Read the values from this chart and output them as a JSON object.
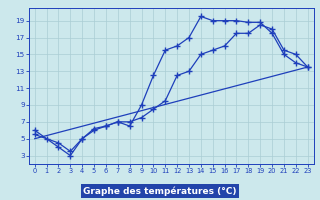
{
  "line1_x": [
    0,
    1,
    2,
    3,
    4,
    5,
    6,
    7,
    8,
    9,
    10,
    11,
    12,
    13,
    14,
    15,
    16,
    17,
    18,
    19,
    20,
    21,
    22,
    23
  ],
  "line1_y": [
    6.0,
    5.0,
    4.0,
    3.0,
    5.0,
    6.0,
    6.5,
    7.0,
    6.5,
    9.0,
    12.5,
    15.5,
    16.0,
    17.0,
    19.5,
    19.0,
    19.0,
    19.0,
    18.8,
    18.8,
    17.5,
    15.0,
    14.0,
    13.5
  ],
  "line2_x": [
    0,
    2,
    3,
    4,
    5,
    6,
    7,
    8,
    9,
    10,
    11,
    12,
    13,
    14,
    15,
    16,
    17,
    18,
    19,
    20,
    21,
    22,
    23
  ],
  "line2_y": [
    5.5,
    4.5,
    3.5,
    5.0,
    6.2,
    6.5,
    7.0,
    7.0,
    7.5,
    8.5,
    9.5,
    12.5,
    13.0,
    15.0,
    15.5,
    16.0,
    17.5,
    17.5,
    18.5,
    18.0,
    15.5,
    15.0,
    13.5
  ],
  "line3_x": [
    0,
    23
  ],
  "line3_y": [
    5.0,
    13.5
  ],
  "line_color": "#1e3fbb",
  "bg_color": "#cce8ec",
  "grid_color": "#aacdd4",
  "xlabel": "Graphe des températures (°C)",
  "xlabel_color": "#ffffff",
  "xlabel_bg": "#2244aa",
  "xlim": [
    -0.5,
    23.5
  ],
  "ylim": [
    2.0,
    20.5
  ],
  "yticks": [
    3,
    5,
    7,
    9,
    11,
    13,
    15,
    17,
    19
  ],
  "xticks": [
    0,
    1,
    2,
    3,
    4,
    5,
    6,
    7,
    8,
    9,
    10,
    11,
    12,
    13,
    14,
    15,
    16,
    17,
    18,
    19,
    20,
    21,
    22,
    23
  ]
}
